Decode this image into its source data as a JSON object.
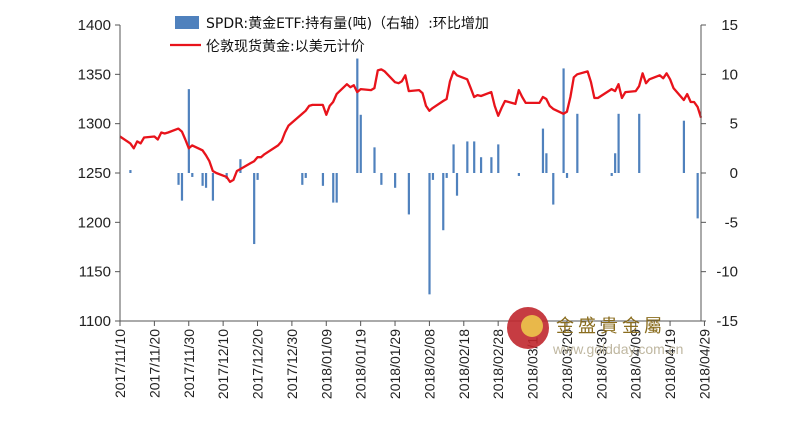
{
  "chart_data": {
    "type": "bar+line",
    "title": "",
    "legend": {
      "placement": "top",
      "bar_label": "SPDR:黄金ETF:持有量(吨)（右轴）:环比增加",
      "line_label": "伦敦现货黄金:以美元计价"
    },
    "colors": {
      "bar": "#4f81bd",
      "line": "#e8131b",
      "axis": "#555555"
    },
    "left_axis": {
      "min": 1100,
      "max": 1400,
      "ticks": [
        "1100",
        "1150",
        "1200",
        "1250",
        "1300",
        "1350",
        "1400"
      ]
    },
    "right_axis": {
      "min": -15,
      "max": 15,
      "ticks": [
        "-15",
        "-10",
        "-5",
        "0",
        "5",
        "10",
        "15"
      ]
    },
    "x_tick_labels": [
      "2017/11/10",
      "2017/11/20",
      "2017/11/30",
      "2017/12/10",
      "2017/12/20",
      "2017/12/30",
      "2018/01/09",
      "2018/01/19",
      "2018/01/29",
      "2018/02/08",
      "2018/02/18",
      "2018/02/28",
      "2018/03/10",
      "2018/03/20",
      "2018/03/30",
      "2018/04/09",
      "2018/04/19",
      "2018/04/29"
    ],
    "x_range": [
      "2017/11/10",
      "2018/04/28"
    ],
    "line_series": {
      "name": "伦敦现货黄金:以美元计价",
      "axis": "left",
      "points": [
        [
          "2017/11/10",
          1287
        ],
        [
          "2017/11/13",
          1280
        ],
        [
          "2017/11/14",
          1275
        ],
        [
          "2017/11/15",
          1282
        ],
        [
          "2017/11/16",
          1280
        ],
        [
          "2017/11/17",
          1286
        ],
        [
          "2017/11/20",
          1287
        ],
        [
          "2017/11/21",
          1284
        ],
        [
          "2017/11/22",
          1291
        ],
        [
          "2017/11/23",
          1290
        ],
        [
          "2017/11/24",
          1291
        ],
        [
          "2017/11/27",
          1295
        ],
        [
          "2017/11/28",
          1292
        ],
        [
          "2017/11/29",
          1284
        ],
        [
          "2017/11/30",
          1275
        ],
        [
          "2017/12/01",
          1278
        ],
        [
          "2017/12/04",
          1273
        ],
        [
          "2017/12/05",
          1268
        ],
        [
          "2017/12/06",
          1262
        ],
        [
          "2017/12/07",
          1252
        ],
        [
          "2017/12/08",
          1250
        ],
        [
          "2017/12/11",
          1246
        ],
        [
          "2017/12/12",
          1241
        ],
        [
          "2017/12/13",
          1243
        ],
        [
          "2017/12/14",
          1252
        ],
        [
          "2017/12/15",
          1254
        ],
        [
          "2017/12/18",
          1260
        ],
        [
          "2017/12/19",
          1262
        ],
        [
          "2017/12/20",
          1266
        ],
        [
          "2017/12/21",
          1266
        ],
        [
          "2017/12/22",
          1269
        ],
        [
          "2017/12/26",
          1278
        ],
        [
          "2017/12/27",
          1282
        ],
        [
          "2017/12/28",
          1291
        ],
        [
          "2017/12/29",
          1298
        ],
        [
          "2018/01/02",
          1310
        ],
        [
          "2018/01/03",
          1313
        ],
        [
          "2018/01/04",
          1318
        ],
        [
          "2018/01/05",
          1319
        ],
        [
          "2018/01/08",
          1319
        ],
        [
          "2018/01/09",
          1309
        ],
        [
          "2018/01/10",
          1318
        ],
        [
          "2018/01/11",
          1322
        ],
        [
          "2018/01/12",
          1330
        ],
        [
          "2018/01/15",
          1340
        ],
        [
          "2018/01/16",
          1337
        ],
        [
          "2018/01/17",
          1339
        ],
        [
          "2018/01/18",
          1332
        ],
        [
          "2018/01/19",
          1335
        ],
        [
          "2018/01/22",
          1334
        ],
        [
          "2018/01/23",
          1336
        ],
        [
          "2018/01/24",
          1354
        ],
        [
          "2018/01/25",
          1355
        ],
        [
          "2018/01/26",
          1353
        ],
        [
          "2018/01/29",
          1342
        ],
        [
          "2018/01/30",
          1341
        ],
        [
          "2018/01/31",
          1343
        ],
        [
          "2018/02/01",
          1349
        ],
        [
          "2018/02/02",
          1333
        ],
        [
          "2018/02/05",
          1334
        ],
        [
          "2018/02/06",
          1331
        ],
        [
          "2018/02/07",
          1318
        ],
        [
          "2018/02/08",
          1313
        ],
        [
          "2018/02/09",
          1316
        ],
        [
          "2018/02/12",
          1323
        ],
        [
          "2018/02/13",
          1325
        ],
        [
          "2018/02/14",
          1343
        ],
        [
          "2018/02/15",
          1353
        ],
        [
          "2018/02/16",
          1349
        ],
        [
          "2018/02/19",
          1345
        ],
        [
          "2018/02/20",
          1336
        ],
        [
          "2018/02/21",
          1327
        ],
        [
          "2018/02/22",
          1329
        ],
        [
          "2018/02/23",
          1328
        ],
        [
          "2018/02/26",
          1332
        ],
        [
          "2018/02/27",
          1318
        ],
        [
          "2018/02/28",
          1308
        ],
        [
          "2018/03/01",
          1316
        ],
        [
          "2018/03/02",
          1323
        ],
        [
          "2018/03/05",
          1320
        ],
        [
          "2018/03/06",
          1334
        ],
        [
          "2018/03/07",
          1327
        ],
        [
          "2018/03/08",
          1321
        ],
        [
          "2018/03/09",
          1321
        ],
        [
          "2018/03/12",
          1321
        ],
        [
          "2018/03/13",
          1327
        ],
        [
          "2018/03/14",
          1325
        ],
        [
          "2018/03/15",
          1318
        ],
        [
          "2018/03/16",
          1315
        ],
        [
          "2018/03/19",
          1310
        ],
        [
          "2018/03/20",
          1312
        ],
        [
          "2018/03/21",
          1327
        ],
        [
          "2018/03/22",
          1347
        ],
        [
          "2018/03/23",
          1350
        ],
        [
          "2018/03/26",
          1353
        ],
        [
          "2018/03/27",
          1342
        ],
        [
          "2018/03/28",
          1326
        ],
        [
          "2018/03/29",
          1326
        ],
        [
          "2018/04/02",
          1335
        ],
        [
          "2018/04/03",
          1333
        ],
        [
          "2018/04/04",
          1340
        ],
        [
          "2018/04/05",
          1326
        ],
        [
          "2018/04/06",
          1332
        ],
        [
          "2018/04/09",
          1333
        ],
        [
          "2018/04/10",
          1338
        ],
        [
          "2018/04/11",
          1351
        ],
        [
          "2018/04/12",
          1341
        ],
        [
          "2018/04/13",
          1345
        ],
        [
          "2018/04/16",
          1349
        ],
        [
          "2018/04/17",
          1346
        ],
        [
          "2018/04/18",
          1351
        ],
        [
          "2018/04/19",
          1345
        ],
        [
          "2018/04/20",
          1336
        ],
        [
          "2018/04/23",
          1324
        ],
        [
          "2018/04/24",
          1330
        ],
        [
          "2018/04/25",
          1322
        ],
        [
          "2018/04/26",
          1322
        ],
        [
          "2018/04/27",
          1317
        ],
        [
          "2018/04/28",
          1306
        ]
      ]
    },
    "bar_series": {
      "name": "SPDR:黄金ETF:持有量(吨)（右轴）:环比增加",
      "axis": "right",
      "points": [
        [
          "2017/11/13",
          0.3
        ],
        [
          "2017/11/27",
          -1.2
        ],
        [
          "2017/11/28",
          -2.8
        ],
        [
          "2017/11/30",
          8.5
        ],
        [
          "2017/12/01",
          -0.4
        ],
        [
          "2017/12/04",
          -1.3
        ],
        [
          "2017/12/05",
          -1.5
        ],
        [
          "2017/12/07",
          -2.8
        ],
        [
          "2017/12/11",
          -0.6
        ],
        [
          "2017/12/15",
          1.4
        ],
        [
          "2017/12/19",
          -7.2
        ],
        [
          "2017/12/20",
          -0.7
        ],
        [
          "2018/01/02",
          -1.2
        ],
        [
          "2018/01/03",
          -0.5
        ],
        [
          "2018/01/08",
          -1.3
        ],
        [
          "2018/01/11",
          -3.0
        ],
        [
          "2018/01/12",
          -3.0
        ],
        [
          "2018/01/18",
          11.6
        ],
        [
          "2018/01/19",
          5.9
        ],
        [
          "2018/01/23",
          2.6
        ],
        [
          "2018/01/25",
          -1.2
        ],
        [
          "2018/01/29",
          -1.5
        ],
        [
          "2018/02/02",
          -4.2
        ],
        [
          "2018/02/08",
          -12.3
        ],
        [
          "2018/02/09",
          -0.7
        ],
        [
          "2018/02/12",
          -5.8
        ],
        [
          "2018/02/13",
          -0.5
        ],
        [
          "2018/02/15",
          2.9
        ],
        [
          "2018/02/16",
          -2.3
        ],
        [
          "2018/02/19",
          3.2
        ],
        [
          "2018/02/21",
          3.2
        ],
        [
          "2018/02/23",
          1.6
        ],
        [
          "2018/02/26",
          1.6
        ],
        [
          "2018/02/28",
          2.9
        ],
        [
          "2018/03/06",
          -0.3
        ],
        [
          "2018/03/13",
          4.5
        ],
        [
          "2018/03/14",
          2.0
        ],
        [
          "2018/03/16",
          -3.2
        ],
        [
          "2018/03/19",
          10.6
        ],
        [
          "2018/03/20",
          -0.5
        ],
        [
          "2018/03/23",
          6.0
        ],
        [
          "2018/04/02",
          -0.3
        ],
        [
          "2018/04/03",
          2.0
        ],
        [
          "2018/04/04",
          6.0
        ],
        [
          "2018/04/10",
          6.0
        ],
        [
          "2018/04/23",
          5.3
        ],
        [
          "2018/04/27",
          -4.6
        ]
      ]
    }
  },
  "watermark": {
    "brand_text": "金盛貴金屬",
    "url_text": "www.goldday.com.cn",
    "logo_colors": {
      "outer": "#c0272d",
      "inner": "#e9b84a"
    }
  }
}
